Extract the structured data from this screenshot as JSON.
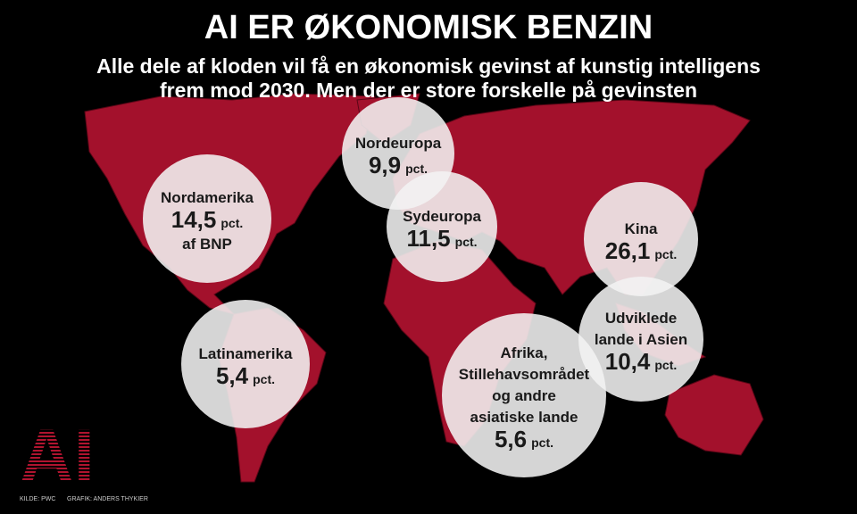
{
  "header": {
    "title": "AI ER ØKONOMISK BENZIN",
    "subtitle": [
      "Alle dele af kloden vil få en økonomisk gevinst af kunstig intelligens",
      "frem mod 2030. Men der er store forskelle på gevinsten"
    ]
  },
  "regions": [
    {
      "name": [
        "Nordamerika"
      ],
      "value": "14,5",
      "unit": "pct.",
      "note": "af BNP"
    },
    {
      "name": [
        "Nordeuropa"
      ],
      "value": "9,9",
      "unit": "pct."
    },
    {
      "name": [
        "Sydeuropa"
      ],
      "value": "11,5",
      "unit": "pct."
    },
    {
      "name": [
        "Kina"
      ],
      "value": "26,1",
      "unit": "pct."
    },
    {
      "name": [
        "Udviklede",
        "lande i Asien"
      ],
      "value": "10,4",
      "unit": "pct."
    },
    {
      "name": [
        "Latinamerika"
      ],
      "value": "5,4",
      "unit": "pct."
    },
    {
      "name": [
        "Afrika,",
        "Stillehavsområdet",
        "og andre",
        "asiatiske lande"
      ],
      "value": "5,6",
      "unit": "pct."
    }
  ],
  "footer": {
    "logo": "AI",
    "source": "KILDE: PWC",
    "credit": "GRAFIK: ANDERS THYKIER"
  }
}
